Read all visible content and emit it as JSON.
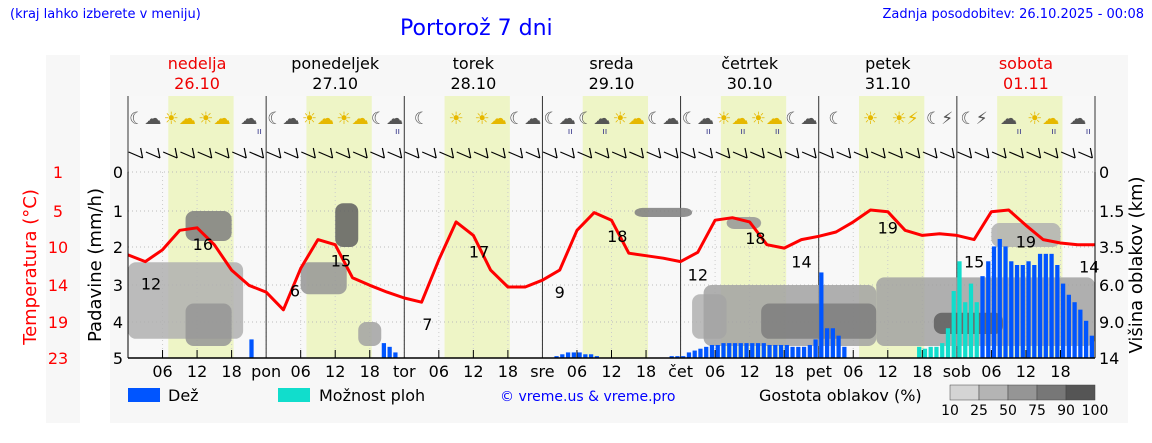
{
  "header": {
    "menu_hint": "(kraj lahko izberete v meniju)",
    "title": "Portorož 7 dni",
    "updated": "Zadnja posodobitev: 26.10.2025 - 00:08"
  },
  "days": [
    {
      "name": "nedelja",
      "date": "26.10",
      "weekend": true
    },
    {
      "name": "ponedeljek",
      "date": "27.10",
      "weekend": false
    },
    {
      "name": "torek",
      "date": "28.10",
      "weekend": false
    },
    {
      "name": "sreda",
      "date": "29.10",
      "weekend": false
    },
    {
      "name": "četrtek",
      "date": "30.10",
      "weekend": false
    },
    {
      "name": "petek",
      "date": "31.10",
      "weekend": false
    },
    {
      "name": "sobota",
      "date": "01.11",
      "weekend": true
    }
  ],
  "day_abbr": [
    "pon",
    "tor",
    "sre",
    "čet",
    "pet",
    "sob"
  ],
  "hour_ticks": [
    "06",
    "12",
    "18"
  ],
  "icons": [
    "moon-cloud",
    "sun-cloud",
    "sun-cloud",
    "cloud-rain",
    "moon-cloud",
    "sun-cloud",
    "sun-cloud",
    "moon-cloud-rain",
    "moon",
    "sun",
    "sun-cloud",
    "moon-cloud",
    "moon-cloud-rain",
    "moon-cloud-rain",
    "sun-cloud",
    "moon-cloud",
    "moon-cloud-rain",
    "sun-cloud-rain",
    "sun-cloud-rain",
    "moon-cloud",
    "moon",
    "sun",
    "sun-storm",
    "moon-storm",
    "moon-storm",
    "cloud-rain",
    "sun-cloud-rain",
    "cloud-rain"
  ],
  "legend": {
    "rain": "Dež",
    "showers": "Možnost ploh",
    "copyright": "© vreme.us & vreme.pro",
    "density_title": "Gostota oblakov (%)",
    "density_levels": [
      "10",
      "25",
      "50",
      "75",
      "90",
      "100"
    ]
  },
  "colors": {
    "rain": "#0055ff",
    "showers": "#11ddcc",
    "temp": "#ff0000",
    "day": "#eef5c6"
  },
  "chart_data": {
    "type": "line",
    "title": "Portorož 7 dni",
    "ylabel_left_temp": "Temperatura (°C)",
    "ylabel_left_precip": "Padavine (mm/h)",
    "ylabel_right": "Višina oblakov (km)",
    "temp_ticks": [
      "23",
      "19",
      "14",
      "10",
      "5",
      "1"
    ],
    "precip_ticks": [
      "5",
      "4",
      "3",
      "2",
      "1",
      "0"
    ],
    "cloud_ticks": [
      "14",
      "9.0",
      "6.0",
      "3.5",
      "1.5",
      "0"
    ],
    "temp_range": [
      1,
      23
    ],
    "precip_range": [
      0,
      5
    ],
    "temperature_every_3h": [
      13.2,
      12.4,
      13.8,
      16.1,
      16.4,
      14.4,
      11.4,
      9.6,
      8.8,
      6.7,
      11.6,
      15,
      14.4,
      10.5,
      9.6,
      8.8,
      8.1,
      7.6,
      12.6,
      17.1,
      15.5,
      11.4,
      9.4,
      9.4,
      10.2,
      11.4,
      16.1,
      18.2,
      17.3,
      13.4,
      13.1,
      12.8,
      12.4,
      13.5,
      17.3,
      17.6,
      17.1,
      14.4,
      14,
      15,
      15.4,
      15.9,
      17.1,
      18.5,
      18.3,
      16.1,
      15.5,
      15.7,
      15.5,
      15,
      18.3,
      18.5,
      16.7,
      15,
      14.6,
      14.4,
      14.4
    ],
    "temp_labels": [
      {
        "h": 4,
        "v": "12"
      },
      {
        "h": 13,
        "v": "16"
      },
      {
        "h": 29,
        "v": "6"
      },
      {
        "h": 37,
        "v": "15"
      },
      {
        "h": 52,
        "v": "7"
      },
      {
        "h": 61,
        "v": "17"
      },
      {
        "h": 75,
        "v": "9"
      },
      {
        "h": 85,
        "v": "18"
      },
      {
        "h": 99,
        "v": "12"
      },
      {
        "h": 109,
        "v": "18"
      },
      {
        "h": 117,
        "v": "14"
      },
      {
        "h": 132,
        "v": "19"
      },
      {
        "h": 147,
        "v": "15"
      },
      {
        "h": 156,
        "v": "19"
      },
      {
        "h": 167,
        "v": "14"
      }
    ],
    "rain": [
      [
        21,
        0.5,
        "r"
      ],
      [
        44,
        0.4,
        "r"
      ],
      [
        45,
        0.3,
        "r"
      ],
      [
        46,
        0.15,
        "r"
      ],
      [
        74,
        0.05,
        "r"
      ],
      [
        75,
        0.1,
        "r"
      ],
      [
        76,
        0.15,
        "r"
      ],
      [
        77,
        0.15,
        "r"
      ],
      [
        78,
        0.15,
        "r"
      ],
      [
        79,
        0.1,
        "r"
      ],
      [
        80,
        0.1,
        "r"
      ],
      [
        81,
        0.05,
        "r"
      ],
      [
        94,
        0.05,
        "r"
      ],
      [
        95,
        0.05,
        "r"
      ],
      [
        96,
        0.05,
        "r"
      ],
      [
        97,
        0.15,
        "r"
      ],
      [
        98,
        0.2,
        "r"
      ],
      [
        99,
        0.25,
        "r"
      ],
      [
        100,
        0.3,
        "r"
      ],
      [
        101,
        0.35,
        "r"
      ],
      [
        102,
        0.35,
        "r"
      ],
      [
        103,
        0.4,
        "r"
      ],
      [
        104,
        0.4,
        "r"
      ],
      [
        105,
        0.4,
        "r"
      ],
      [
        106,
        0.4,
        "r"
      ],
      [
        107,
        0.4,
        "r"
      ],
      [
        108,
        0.4,
        "r"
      ],
      [
        109,
        0.4,
        "r"
      ],
      [
        110,
        0.4,
        "r"
      ],
      [
        111,
        0.35,
        "r"
      ],
      [
        112,
        0.35,
        "r"
      ],
      [
        113,
        0.35,
        "r"
      ],
      [
        114,
        0.35,
        "r"
      ],
      [
        115,
        0.3,
        "r"
      ],
      [
        116,
        0.3,
        "r"
      ],
      [
        117,
        0.3,
        "r"
      ],
      [
        118,
        0.35,
        "r"
      ],
      [
        119,
        0.5,
        "r"
      ],
      [
        120,
        2.3,
        "r"
      ],
      [
        121,
        0.8,
        "r"
      ],
      [
        122,
        0.8,
        "r"
      ],
      [
        123,
        0.6,
        "r"
      ],
      [
        124,
        0.3,
        "r"
      ],
      [
        137,
        0.3,
        "s"
      ],
      [
        138,
        0.25,
        "s"
      ],
      [
        139,
        0.3,
        "s"
      ],
      [
        140,
        0.3,
        "s"
      ],
      [
        141,
        0.4,
        "s"
      ],
      [
        142,
        0.8,
        "s"
      ],
      [
        143,
        1.8,
        "s"
      ],
      [
        144,
        2.6,
        "s"
      ],
      [
        145,
        1.5,
        "s"
      ],
      [
        146,
        2.0,
        "s"
      ],
      [
        147,
        1.5,
        "s"
      ],
      [
        148,
        2.2,
        "r"
      ],
      [
        149,
        2.6,
        "r"
      ],
      [
        150,
        3.0,
        "r"
      ],
      [
        151,
        3.2,
        "r"
      ],
      [
        152,
        3.0,
        "r"
      ],
      [
        153,
        2.6,
        "r"
      ],
      [
        154,
        2.5,
        "r"
      ],
      [
        155,
        2.5,
        "r"
      ],
      [
        156,
        2.6,
        "r"
      ],
      [
        157,
        2.5,
        "r"
      ],
      [
        158,
        2.8,
        "r"
      ],
      [
        159,
        2.8,
        "r"
      ],
      [
        160,
        2.8,
        "r"
      ],
      [
        161,
        2.5,
        "r"
      ],
      [
        162,
        2.0,
        "r"
      ],
      [
        163,
        1.7,
        "r"
      ],
      [
        164,
        1.5,
        "r"
      ],
      [
        165,
        1.3,
        "r"
      ],
      [
        166,
        1.0,
        "r"
      ],
      [
        167,
        0.6,
        "r"
      ]
    ],
    "clouds": [
      [
        0,
        20,
        0.8,
        5,
        40
      ],
      [
        10,
        18,
        0.5,
        2.5,
        60
      ],
      [
        10,
        18,
        6.5,
        9,
        75
      ],
      [
        30,
        38,
        3,
        5,
        60
      ],
      [
        36,
        40,
        6,
        10,
        90
      ],
      [
        40,
        44,
        0.5,
        1.5,
        50
      ],
      [
        88,
        98,
        8.5,
        9.4,
        75
      ],
      [
        98,
        104,
        0.8,
        3,
        40
      ],
      [
        100,
        130,
        0.5,
        3.5,
        50
      ],
      [
        110,
        130,
        0.8,
        2.5,
        75
      ],
      [
        104,
        110,
        7.5,
        8.5,
        60
      ],
      [
        130,
        168,
        0.5,
        4,
        50
      ],
      [
        140,
        152,
        1,
        2,
        90
      ],
      [
        150,
        162,
        6,
        8,
        40
      ]
    ]
  }
}
